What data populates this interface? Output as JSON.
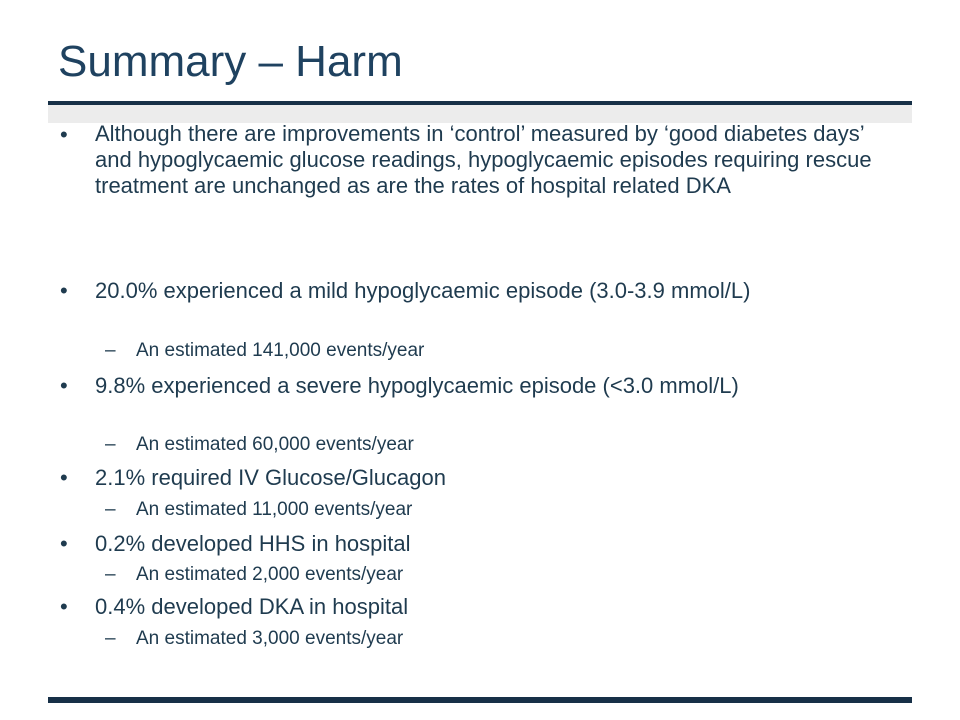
{
  "slide": {
    "title": "Summary – Harm",
    "bullet_glyph": "•",
    "dash_glyph": "–",
    "items": [
      {
        "text": "Although there are improvements in ‘control’ measured by ‘good diabetes days’ and hypoglycaemic glucose readings, hypoglycaemic episodes requiring rescue treatment are unchanged as are the rates of hospital related DKA"
      },
      {
        "text": "20.0% experienced a mild hypoglycaemic episode (3.0-3.9 mmol/L)",
        "sub": "An estimated 141,000 events/year"
      },
      {
        "text": "9.8% experienced a severe hypoglycaemic episode (<3.0 mmol/L)",
        "sub": "An estimated 60,000 events/year"
      },
      {
        "text": "2.1% required IV Glucose/Glucagon",
        "sub": "An estimated 11,000 events/year"
      },
      {
        "text": "0.2% developed HHS in hospital",
        "sub": "An estimated 2,000 events/year"
      },
      {
        "text": "0.4% developed DKA in hospital",
        "sub": "An estimated 3,000 events/year"
      }
    ]
  }
}
